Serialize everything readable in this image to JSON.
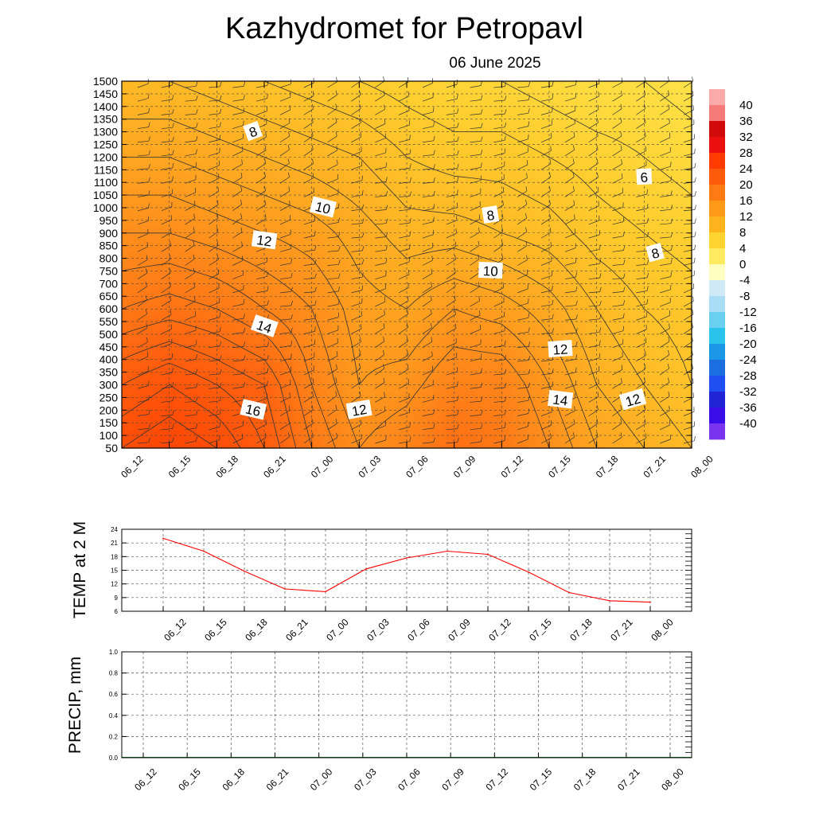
{
  "title": "Kazhydromet  for Petropavl",
  "subtitle": "06 June 2025",
  "chart_data": [
    {
      "type": "heatmap",
      "panel": "cross-section",
      "x": [
        "06_12",
        "06_15",
        "06_18",
        "06_21",
        "07_00",
        "07_03",
        "07_06",
        "07_09",
        "07_12",
        "07_15",
        "07_18",
        "07_21",
        "08_00"
      ],
      "y_ticks": [
        50,
        100,
        150,
        200,
        250,
        300,
        350,
        400,
        450,
        500,
        550,
        600,
        650,
        700,
        750,
        800,
        850,
        900,
        950,
        1000,
        1050,
        1100,
        1150,
        1200,
        1250,
        1300,
        1350,
        1400,
        1450,
        1500
      ],
      "ylim": [
        50,
        1500
      ],
      "grid": true,
      "colorbar": {
        "labels": [
          "40",
          "36",
          "32",
          "28",
          "24",
          "20",
          "16",
          "12",
          "8",
          "4",
          "0",
          "-4",
          "-8",
          "-12",
          "-16",
          "-20",
          "-24",
          "-28",
          "-32",
          "-36",
          "-40"
        ],
        "colors": [
          "#fca9a9",
          "#f77a7a",
          "#d10a0a",
          "#ec0f0f",
          "#ff3b00",
          "#fd5b0a",
          "#ff7a12",
          "#ff9a18",
          "#ffb31c",
          "#ffd330",
          "#ffea60",
          "#fffdc0",
          "#cfeaf6",
          "#a9dcf5",
          "#6ad0f2",
          "#29c3ec",
          "#1a97e6",
          "#1b6ee0",
          "#1f4ff0",
          "#2124d4",
          "#3a0ce8",
          "#7a34f0"
        ]
      },
      "temperature_grid": [
        [
          21,
          22,
          21,
          19,
          16,
          14,
          15,
          17,
          16,
          14,
          12,
          11,
          10
        ],
        [
          19,
          20,
          19,
          18,
          15,
          13,
          13.5,
          15,
          15,
          13,
          11,
          10,
          9
        ],
        [
          16,
          16.5,
          16,
          15,
          14,
          12.5,
          12,
          13,
          12.5,
          11.5,
          10,
          9,
          8.5
        ],
        [
          14,
          14,
          13.5,
          13,
          12.5,
          11.5,
          10.5,
          10.5,
          10,
          9.5,
          8.5,
          8,
          7.5
        ],
        [
          12,
          12,
          11.5,
          11,
          10.5,
          10,
          9,
          8.5,
          8.5,
          8,
          7.5,
          7,
          6.5
        ],
        [
          10,
          10,
          9.5,
          9,
          8.5,
          8,
          7.5,
          7,
          7,
          6.5,
          6,
          6,
          5.5
        ]
      ],
      "temperature_grid_heights": [
        50,
        300,
        600,
        900,
        1200,
        1500
      ],
      "contour_labels": [
        {
          "text": "8",
          "x": "06_21",
          "y": 1300
        },
        {
          "text": "6",
          "x": "07_21",
          "y": 1120
        },
        {
          "text": "10",
          "x": "07_00",
          "y": 1000
        },
        {
          "text": "8",
          "x": "07_12",
          "y": 970
        },
        {
          "text": "12",
          "x": "06_21",
          "y": 870
        },
        {
          "text": "8",
          "x": "07_21",
          "y": 820
        },
        {
          "text": "10",
          "x": "07_12",
          "y": 750
        },
        {
          "text": "14",
          "x": "06_21",
          "y": 530
        },
        {
          "text": "12",
          "x": "07_15",
          "y": 440
        },
        {
          "text": "16",
          "x": "06_21",
          "y": 200
        },
        {
          "text": "12",
          "x": "07_03",
          "y": 200
        },
        {
          "text": "14",
          "x": "07_15",
          "y": 240
        },
        {
          "text": "12",
          "x": "07_21",
          "y": 240
        }
      ]
    },
    {
      "type": "line",
      "panel": "temp-2m",
      "ylabel": "TEMP at 2 M",
      "x": [
        "06_12",
        "06_15",
        "06_18",
        "06_21",
        "07_00",
        "07_03",
        "07_06",
        "07_09",
        "07_12",
        "07_15",
        "07_18",
        "07_21",
        "08_00"
      ],
      "y_ticks": [
        6,
        9,
        12,
        15,
        18,
        21,
        24
      ],
      "ylim": [
        6,
        24
      ],
      "grid": true,
      "series": [
        {
          "color": "#ff0000",
          "values": [
            22,
            19.2,
            14.8,
            10.9,
            10.3,
            15.3,
            17.7,
            19.2,
            18.5,
            14.6,
            10.1,
            8.3,
            8.0
          ]
        }
      ]
    },
    {
      "type": "bar",
      "panel": "precip",
      "ylabel": "PRECIP, mm",
      "x": [
        "06_12",
        "06_15",
        "06_18",
        "06_21",
        "07_00",
        "07_03",
        "07_06",
        "07_09",
        "07_12",
        "07_15",
        "07_18",
        "07_21",
        "08_00"
      ],
      "y_ticks": [
        "0.0",
        "0.2",
        "0.4",
        "0.6",
        "0.8",
        "1.0"
      ],
      "ylim": [
        0,
        1
      ],
      "grid": true,
      "values": [
        0,
        0,
        0,
        0,
        0,
        0,
        0,
        0,
        0,
        0,
        0,
        0,
        0
      ]
    }
  ]
}
